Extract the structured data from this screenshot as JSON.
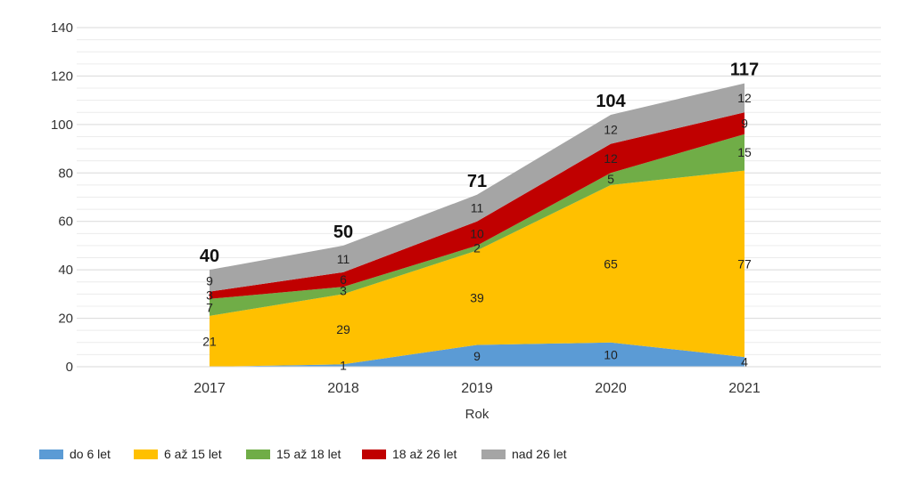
{
  "chart_data": {
    "type": "area",
    "stacked": true,
    "categories": [
      "2017",
      "2018",
      "2019",
      "2020",
      "2021"
    ],
    "xlabel": "Rok",
    "ylabel": "",
    "ylim": [
      0,
      140
    ],
    "yticks": [
      0,
      20,
      40,
      60,
      80,
      100,
      120,
      140
    ],
    "grid": true,
    "legend_position": "bottom-left",
    "series": [
      {
        "name": "do 6 let",
        "color": "#5B9BD5",
        "values": [
          0,
          1,
          9,
          10,
          4
        ],
        "labels": [
          "",
          "1",
          "9",
          "10",
          "4"
        ]
      },
      {
        "name": "6 až 15 let",
        "color": "#FFC000",
        "values": [
          21,
          29,
          39,
          65,
          77
        ],
        "labels": [
          "21",
          "29",
          "39",
          "65",
          "77"
        ]
      },
      {
        "name": "15 až 18 let",
        "color": "#70AD47",
        "values": [
          7,
          3,
          2,
          5,
          15
        ],
        "labels": [
          "7",
          "3",
          "2",
          "5",
          "15"
        ]
      },
      {
        "name": "18 až 26 let",
        "color": "#C00000",
        "values": [
          3,
          6,
          10,
          12,
          9
        ],
        "labels": [
          "3",
          "6",
          "10",
          "12",
          "9"
        ]
      },
      {
        "name": "nad 26 let",
        "color": "#A5A5A5",
        "values": [
          9,
          11,
          11,
          12,
          12
        ],
        "labels": [
          "9",
          "11",
          "11",
          "12",
          "12"
        ]
      }
    ],
    "totals": [
      40,
      50,
      71,
      104,
      117
    ]
  }
}
